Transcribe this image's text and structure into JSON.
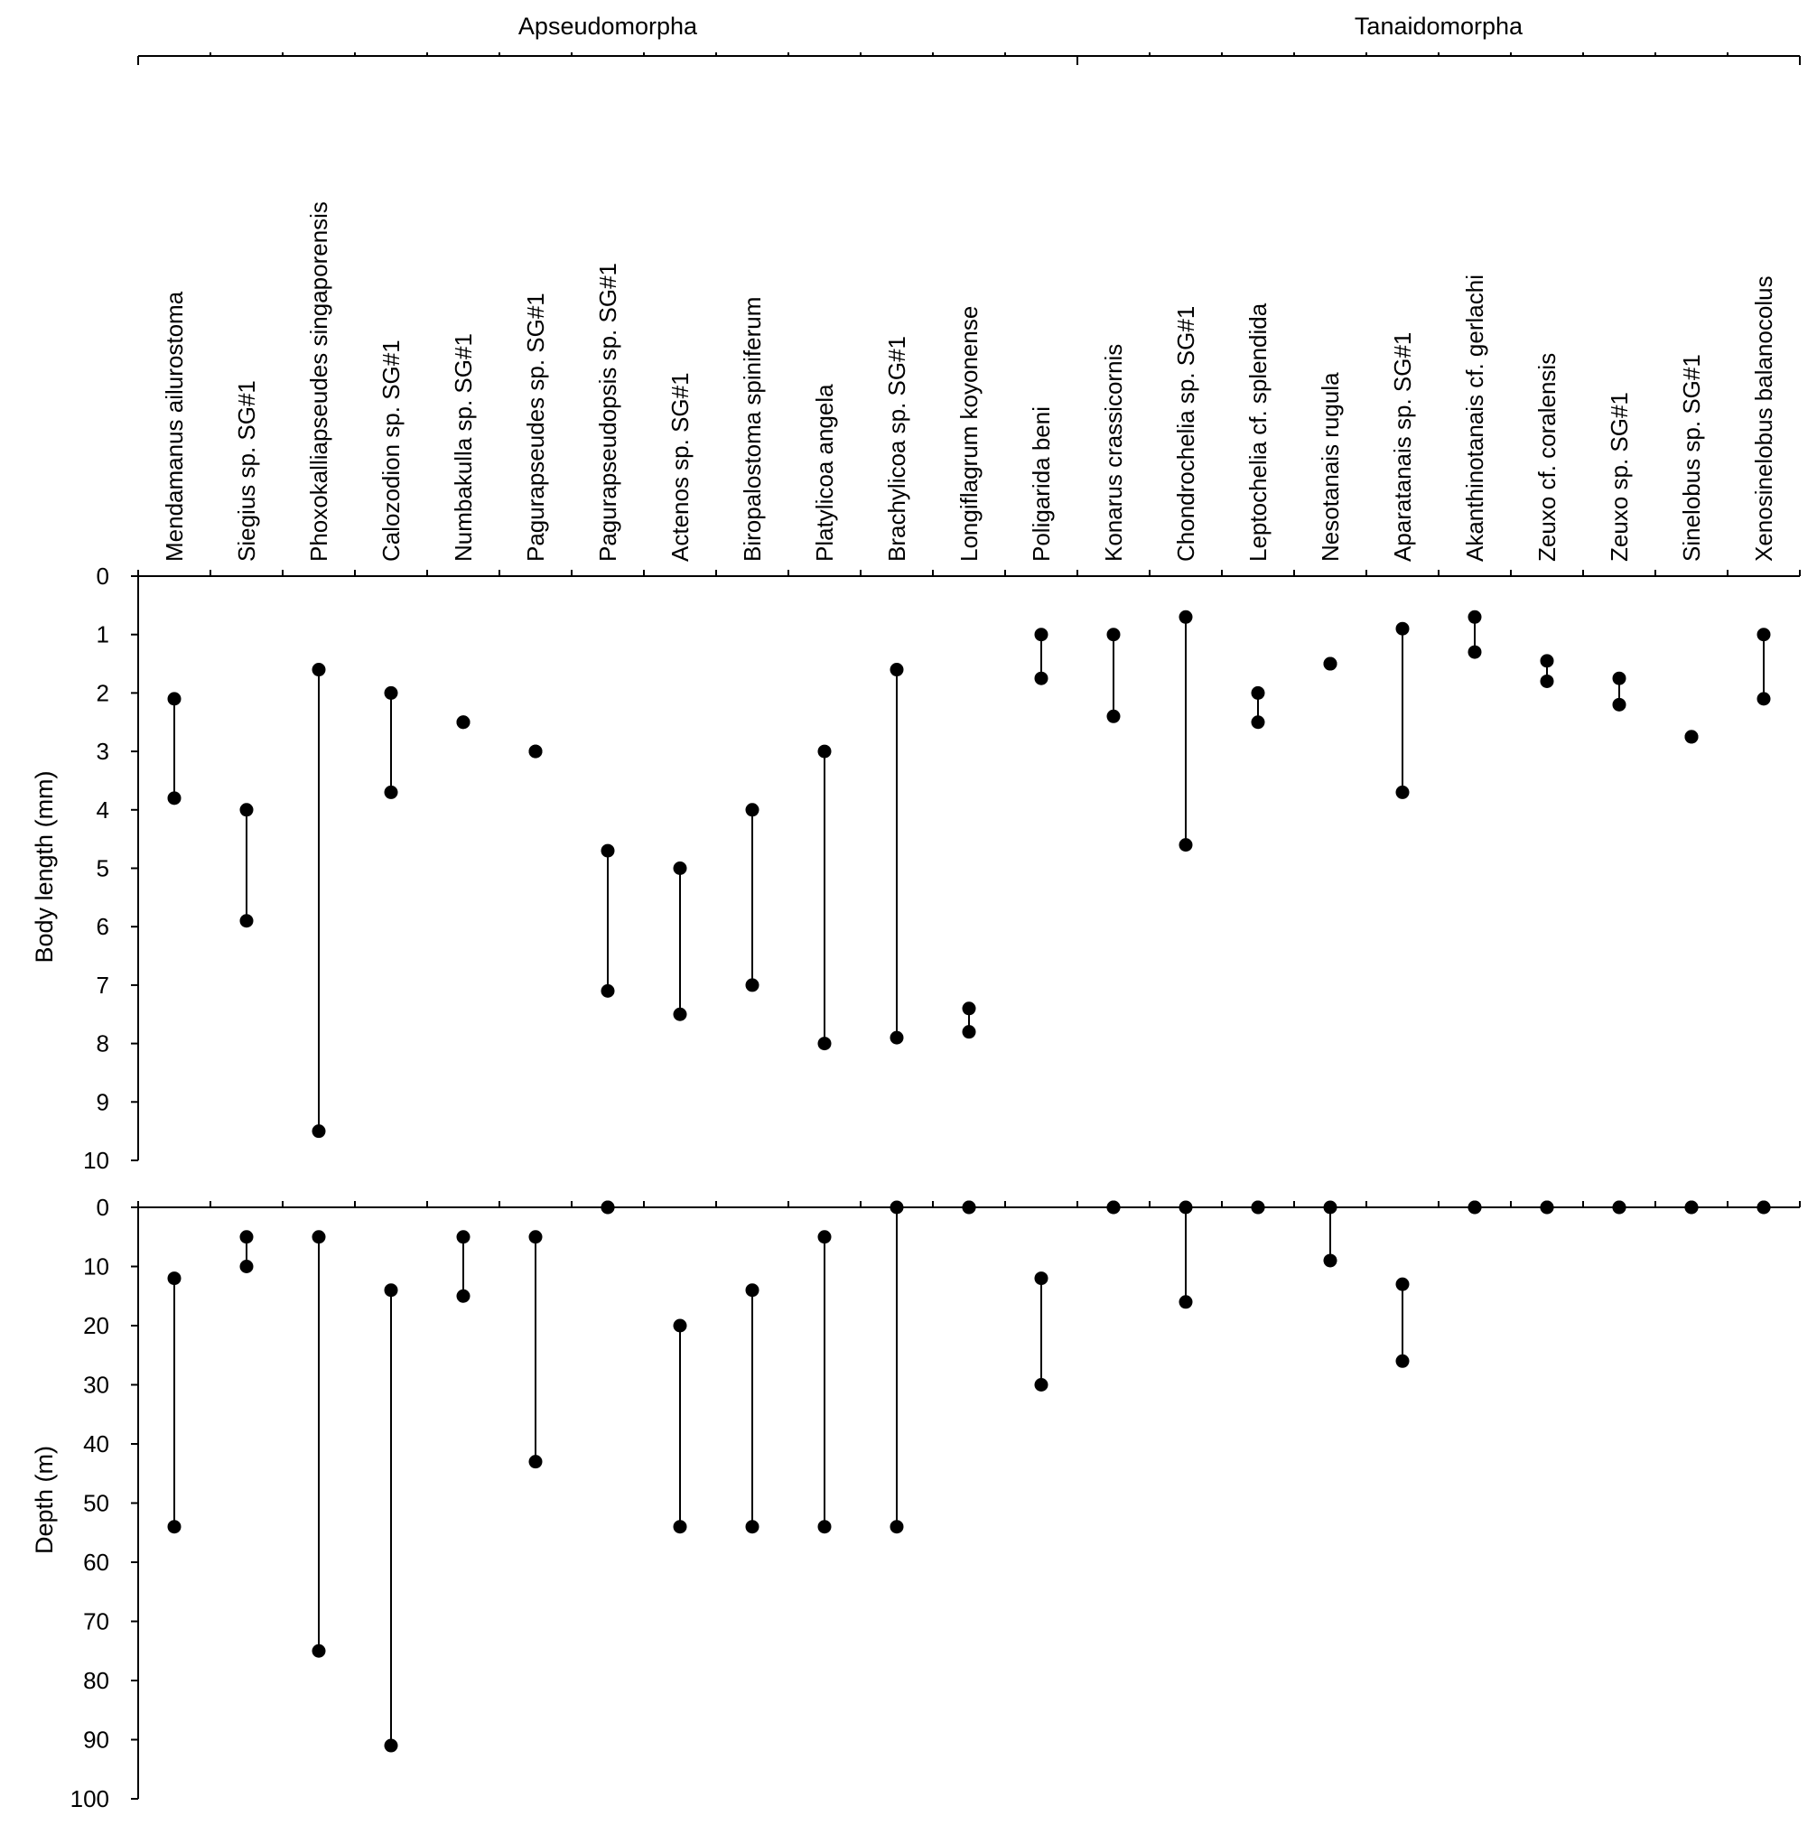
{
  "chart_data": {
    "type": "range-dot",
    "groups": [
      {
        "name": "Apseudomorpha",
        "count": 13
      },
      {
        "name": "Tanaidomorpha",
        "count": 10
      }
    ],
    "categories": [
      "Mendamanus ailurostoma",
      "Siegius sp. SG#1",
      "Phoxokalliapseudes singaporensis",
      "Calozodion sp. SG#1",
      "Numbakulla sp. SG#1",
      "Pagurapseudes sp. SG#1",
      "Pagurapseudopsis sp. SG#1",
      "Actenos sp. SG#1",
      "Biropalostoma spiniferum",
      "Platylicoa angela",
      "Brachylicoa sp. SG#1",
      "Longiflagrum koyonense",
      "Poligarida beni",
      "Konarus crassicornis",
      "Chondrochelia sp. SG#1",
      "Leptochelia cf. splendida",
      "Nesotanais rugula",
      "Aparatanais sp. SG#1",
      "Akanthinotanais cf. gerlachi",
      "Zeuxo cf. coralensis",
      "Zeuxo sp. SG#1",
      "Sinelobus sp. SG#1",
      "Xenosinelobus balanocolus"
    ],
    "panels": [
      {
        "ylabel": "Body length (mm)",
        "ylim": [
          0,
          10
        ],
        "yticks": [
          "0",
          "1",
          "2",
          "3",
          "4",
          "5",
          "6",
          "7",
          "8",
          "9",
          "10"
        ],
        "inverted": true,
        "ranges": [
          [
            2.1,
            3.8
          ],
          [
            4.0,
            5.9
          ],
          [
            1.6,
            9.5
          ],
          [
            2.0,
            3.7
          ],
          [
            2.5,
            2.5
          ],
          [
            3.0,
            3.0
          ],
          [
            4.7,
            7.1
          ],
          [
            5.0,
            7.5
          ],
          [
            4.0,
            7.0
          ],
          [
            3.0,
            8.0
          ],
          [
            1.6,
            7.9
          ],
          [
            7.4,
            7.8
          ],
          [
            1.0,
            1.75
          ],
          [
            1.0,
            2.4
          ],
          [
            0.7,
            4.6
          ],
          [
            2.0,
            2.5
          ],
          [
            1.5,
            1.5
          ],
          [
            0.9,
            3.7
          ],
          [
            0.7,
            1.3
          ],
          [
            1.45,
            1.8
          ],
          [
            1.75,
            2.2
          ],
          [
            2.75,
            2.75
          ],
          [
            1.0,
            2.1
          ]
        ]
      },
      {
        "ylabel": "Depth (m)",
        "ylim": [
          0,
          100
        ],
        "yticks": [
          "0",
          "10",
          "20",
          "30",
          "40",
          "50",
          "60",
          "70",
          "80",
          "90",
          "100"
        ],
        "inverted": true,
        "ranges": [
          [
            12,
            54
          ],
          [
            5,
            10
          ],
          [
            5,
            75
          ],
          [
            14,
            91
          ],
          [
            5,
            15
          ],
          [
            5,
            43
          ],
          [
            0,
            0
          ],
          [
            20,
            54
          ],
          [
            14,
            54
          ],
          [
            5,
            54
          ],
          [
            0,
            54
          ],
          [
            0,
            0
          ],
          [
            12,
            30
          ],
          [
            0,
            0
          ],
          [
            0,
            16
          ],
          [
            0,
            0
          ],
          [
            0,
            9
          ],
          [
            13,
            26
          ],
          [
            0,
            0
          ],
          [
            0,
            0
          ],
          [
            0,
            0
          ],
          [
            0,
            0
          ],
          [
            0,
            0
          ]
        ]
      }
    ]
  }
}
